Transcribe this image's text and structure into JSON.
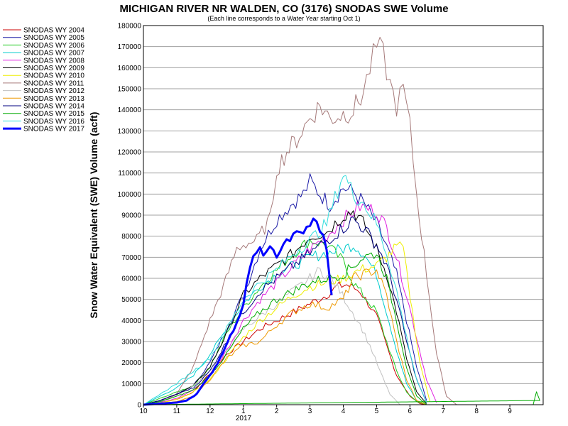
{
  "chart_data": {
    "type": "line",
    "title": "MICHIGAN RIVER NR WALDEN, CO (3176) SNODAS SWE Volume",
    "subtitle": "(Each line corresponds to a Water Year starting Oct 1)",
    "ylabel": "Snow Water Equivalent (SWE) Volume (acft)",
    "xlabel": "",
    "x_ticks": [
      "10",
      "11",
      "12",
      "1",
      "2",
      "3",
      "4",
      "5",
      "6",
      "7",
      "8",
      "9"
    ],
    "x_year_label": "2017",
    "ylim": [
      0,
      180000
    ],
    "y_ticks": [
      "0",
      "10000",
      "20000",
      "30000",
      "40000",
      "50000",
      "60000",
      "70000",
      "80000",
      "90000",
      "100000",
      "110000",
      "120000",
      "130000",
      "140000",
      "150000",
      "160000",
      "170000",
      "180000"
    ],
    "grid": true,
    "legend_position": "top-left",
    "series": [
      {
        "name": "SNODAS WY 2004",
        "color": "#cc0000",
        "bold": false,
        "x": [
          10,
          10.5,
          11,
          11.5,
          12,
          12.5,
          1,
          1.5,
          2,
          2.5,
          3,
          3.5,
          3.8,
          4.1,
          4.5,
          5,
          5.3,
          5.6,
          6,
          6.3,
          6.5
        ],
        "y": [
          0,
          800,
          2500,
          6000,
          15000,
          24000,
          30000,
          36000,
          40000,
          44000,
          48000,
          52000,
          56000,
          57000,
          54000,
          42000,
          28000,
          14000,
          4000,
          500,
          0
        ]
      },
      {
        "name": "SNODAS WY 2005",
        "color": "#1a1aa6",
        "bold": false,
        "x": [
          10,
          10.5,
          11,
          11.5,
          12,
          12.5,
          1,
          1.5,
          2,
          2.5,
          2.8,
          3,
          3.3,
          3.6,
          4,
          4.3,
          4.6,
          5,
          5.3,
          5.6,
          5.9,
          6.2,
          6.5
        ],
        "y": [
          0,
          2000,
          5000,
          9000,
          20000,
          36000,
          52000,
          74000,
          88000,
          96000,
          100000,
          106000,
          100000,
          95000,
          103000,
          101000,
          96000,
          86000,
          75000,
          62000,
          40000,
          18000,
          2000
        ]
      },
      {
        "name": "SNODAS WY 2006",
        "color": "#22cc22",
        "bold": false,
        "x": [
          10,
          10.5,
          11,
          11.5,
          12,
          12.5,
          1,
          1.5,
          2,
          2.5,
          3,
          3.5,
          4,
          4.3,
          4.6,
          5,
          5.3,
          5.6,
          5.9,
          6.2,
          6.5
        ],
        "y": [
          0,
          3000,
          6000,
          9000,
          18000,
          34000,
          46000,
          56000,
          64000,
          72000,
          78000,
          76000,
          68000,
          58000,
          52000,
          44000,
          30000,
          16000,
          6000,
          1500,
          0
        ]
      },
      {
        "name": "SNODAS WY 2007",
        "color": "#00cccc",
        "bold": false,
        "x": [
          10,
          10.5,
          11,
          11.5,
          12,
          12.5,
          1,
          1.5,
          2,
          2.5,
          3,
          3.5,
          4,
          4.3,
          4.6,
          5,
          5.3,
          5.6,
          5.9,
          6.2
        ],
        "y": [
          0,
          4000,
          8000,
          14000,
          24000,
          36000,
          48000,
          56000,
          62000,
          66000,
          70000,
          72000,
          74000,
          76000,
          72000,
          62000,
          44000,
          26000,
          10000,
          2000
        ]
      },
      {
        "name": "SNODAS WY 2008",
        "color": "#e020e0",
        "bold": false,
        "x": [
          10,
          10.5,
          11,
          11.5,
          12,
          12.5,
          1,
          1.5,
          2,
          2.5,
          3,
          3.5,
          4,
          4.5,
          5,
          5.3,
          5.6,
          5.9,
          6.2,
          6.5,
          6.8
        ],
        "y": [
          0,
          1000,
          3000,
          7000,
          14000,
          26000,
          40000,
          50000,
          58000,
          66000,
          74000,
          80000,
          88000,
          94000,
          92000,
          84000,
          70000,
          52000,
          32000,
          12000,
          1000
        ]
      },
      {
        "name": "SNODAS WY 2009",
        "color": "#000000",
        "bold": false,
        "x": [
          10,
          10.5,
          11,
          11.5,
          12,
          12.5,
          1,
          1.5,
          2,
          2.5,
          3,
          3.5,
          4,
          4.3,
          4.6,
          5,
          5.3,
          5.6,
          5.9,
          6.2,
          6.5
        ],
        "y": [
          0,
          2000,
          5000,
          9000,
          18000,
          34000,
          52000,
          60000,
          66000,
          72000,
          80000,
          82000,
          90000,
          92000,
          86000,
          74000,
          62000,
          44000,
          22000,
          6000,
          500
        ]
      },
      {
        "name": "SNODAS WY 2010",
        "color": "#eeee00",
        "bold": false,
        "x": [
          10,
          10.5,
          11,
          11.5,
          12,
          12.5,
          1,
          1.5,
          2,
          2.5,
          3,
          3.5,
          4,
          4.5,
          5,
          5.3,
          5.6,
          5.8,
          6,
          6.3,
          6.6
        ],
        "y": [
          0,
          800,
          2500,
          6000,
          12000,
          22000,
          32000,
          40000,
          46000,
          52000,
          56000,
          58000,
          60000,
          64000,
          66000,
          70000,
          75000,
          74000,
          52000,
          20000,
          1500
        ]
      },
      {
        "name": "SNODAS WY 2011",
        "color": "#a67a7a",
        "bold": false,
        "x": [
          10,
          10.5,
          11,
          11.5,
          12,
          12.4,
          12.8,
          1,
          1.4,
          1.8,
          2,
          2.3,
          2.6,
          3,
          3.3,
          3.6,
          4,
          4.3,
          4.6,
          4.8,
          5,
          5.2,
          5.4,
          5.6,
          5.8,
          6,
          6.2,
          6.5,
          6.8,
          7.1,
          7.4
        ],
        "y": [
          0,
          1000,
          5000,
          18000,
          40000,
          56000,
          74000,
          76000,
          78000,
          88000,
          112000,
          120000,
          126000,
          136000,
          142000,
          136000,
          138000,
          140000,
          148000,
          160000,
          170000,
          166000,
          152000,
          142000,
          150000,
          132000,
          100000,
          62000,
          24000,
          4000,
          0
        ]
      },
      {
        "name": "SNODAS WY 2012",
        "color": "#c0c0c0",
        "bold": false,
        "x": [
          10,
          10.5,
          11,
          11.5,
          12,
          12.5,
          1,
          1.5,
          2,
          2.5,
          3,
          3.3,
          3.6,
          3.9,
          4.2,
          4.5,
          4.8,
          5.1,
          5.4,
          5.7
        ],
        "y": [
          0,
          1500,
          4000,
          9000,
          16000,
          26000,
          36000,
          42000,
          48000,
          54000,
          60000,
          64000,
          60000,
          54000,
          46000,
          38000,
          28000,
          16000,
          5000,
          0
        ]
      },
      {
        "name": "SNODAS WY 2013",
        "color": "#ee9900",
        "bold": false,
        "x": [
          10,
          10.5,
          11,
          11.5,
          12,
          12.5,
          1,
          1.5,
          2,
          2.5,
          3,
          3.5,
          4,
          4.3,
          4.6,
          5,
          5.3,
          5.6,
          5.9,
          6.2,
          6.5
        ],
        "y": [
          0,
          500,
          1500,
          4000,
          12000,
          22000,
          28000,
          30000,
          38000,
          44000,
          48000,
          46000,
          50000,
          60000,
          62000,
          64000,
          52000,
          30000,
          12000,
          2000,
          0
        ]
      },
      {
        "name": "SNODAS WY 2014",
        "color": "#000080",
        "bold": false,
        "x": [
          10,
          10.5,
          11,
          11.5,
          12,
          12.5,
          1,
          1.5,
          2,
          2.5,
          3,
          3.5,
          4,
          4.3,
          4.6,
          5,
          5.3,
          5.6,
          5.9,
          6.2,
          6.5
        ],
        "y": [
          0,
          2000,
          5000,
          8000,
          16000,
          30000,
          44000,
          54000,
          60000,
          66000,
          72000,
          78000,
          84000,
          88000,
          84000,
          76000,
          66000,
          50000,
          30000,
          12000,
          1000
        ]
      },
      {
        "name": "SNODAS WY 2015",
        "color": "#00aa00",
        "bold": false,
        "x": [
          10,
          10.5,
          11,
          11.5,
          12,
          12.5,
          1,
          1.5,
          2,
          2.5,
          3,
          3.5,
          4,
          4.3,
          4.6,
          5,
          5.3,
          5.6,
          5.9,
          6.2,
          6.5,
          9.7,
          9.8,
          9.9,
          10.0
        ],
        "y": [
          0,
          1500,
          4000,
          7000,
          14000,
          24000,
          36000,
          44000,
          50000,
          54000,
          58000,
          60000,
          62000,
          66000,
          70000,
          72000,
          60000,
          40000,
          18000,
          4000,
          0,
          0,
          6000,
          2000,
          0
        ]
      },
      {
        "name": "SNODAS WY 2016",
        "color": "#33dddd",
        "bold": false,
        "x": [
          10,
          10.5,
          11,
          11.5,
          12,
          12.5,
          1,
          1.5,
          2,
          2.5,
          3,
          3.5,
          4,
          4.3,
          4.6,
          5,
          5.3,
          5.6,
          5.9,
          6.2,
          6.5
        ],
        "y": [
          0,
          5000,
          10000,
          16000,
          22000,
          36000,
          50000,
          58000,
          64000,
          72000,
          78000,
          86000,
          110000,
          100000,
          96000,
          86000,
          72000,
          54000,
          32000,
          12000,
          1000
        ]
      },
      {
        "name": "SNODAS WY 2017",
        "color": "#0000ff",
        "bold": true,
        "x": [
          10,
          10.5,
          10.8,
          11,
          11.3,
          11.6,
          11.8,
          12,
          12.3,
          12.6,
          12.8,
          1,
          1.2,
          1.4,
          1.6,
          1.8,
          2,
          2.2,
          2.4,
          2.6,
          2.8,
          3,
          3.2,
          3.4,
          3.5,
          3.6,
          3.65
        ],
        "y": [
          0,
          500,
          800,
          1000,
          2000,
          5000,
          10000,
          14000,
          22000,
          32000,
          40000,
          48000,
          64000,
          74000,
          70000,
          76000,
          72000,
          76000,
          80000,
          84000,
          82000,
          86000,
          84000,
          80000,
          72000,
          60000,
          52000
        ]
      }
    ]
  }
}
